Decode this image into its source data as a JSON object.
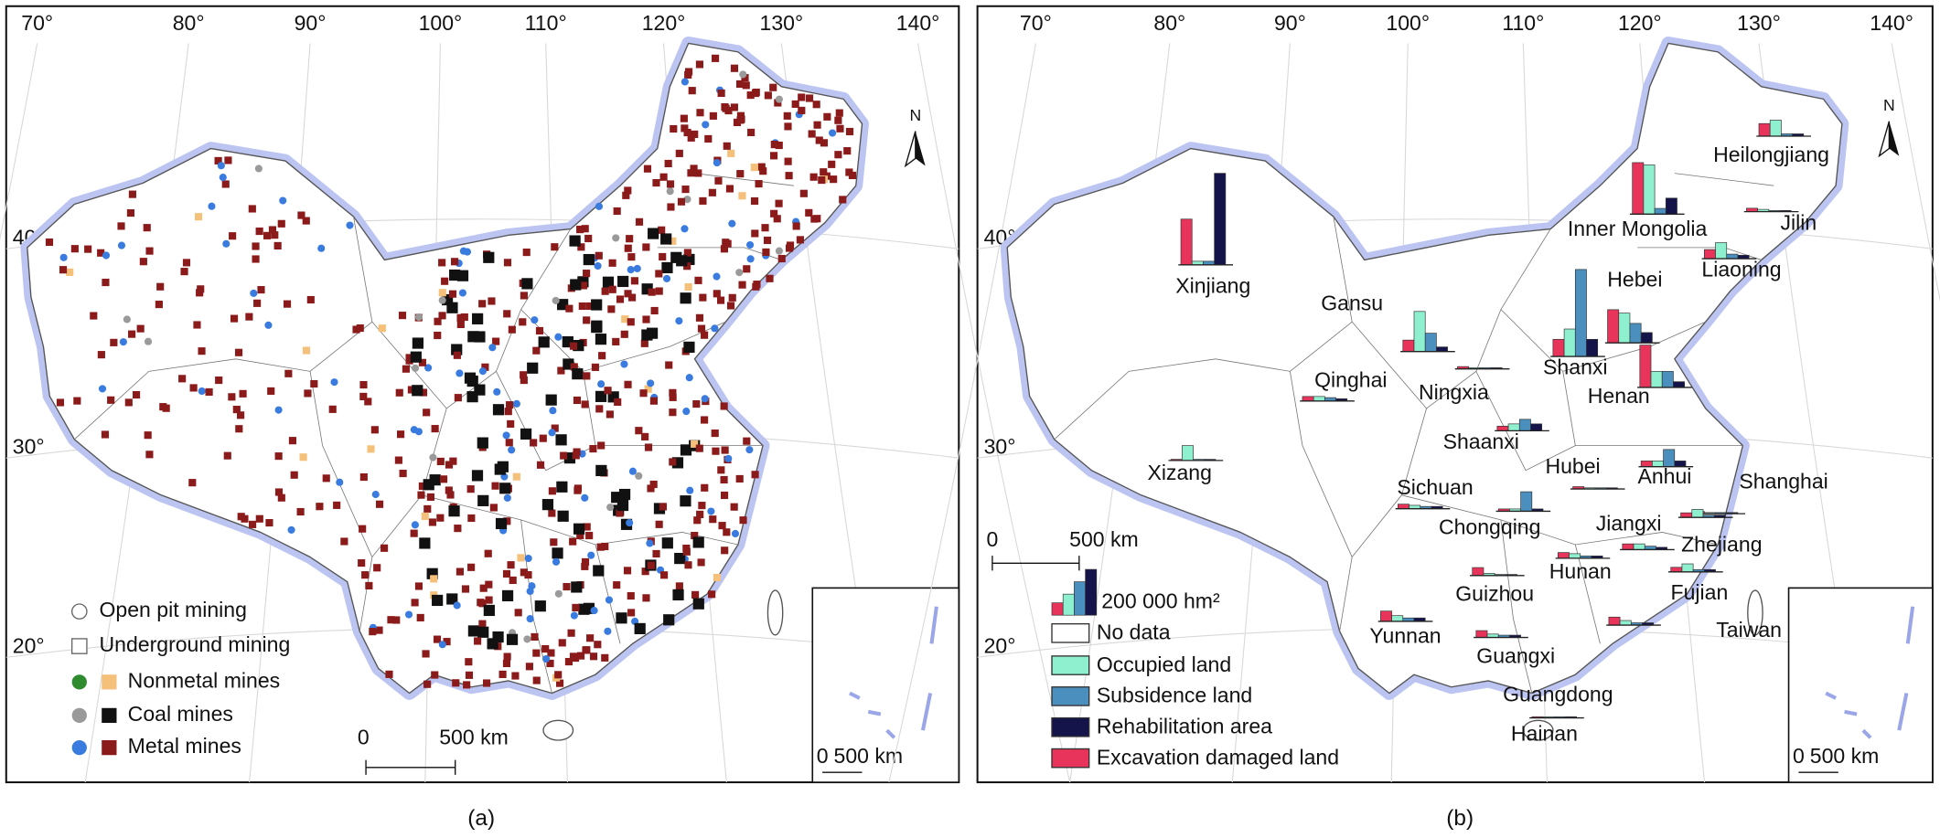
{
  "panels": [
    {
      "caption": "(a)",
      "longitudes": [
        "70°",
        "80°",
        "90°",
        "100°",
        "110°",
        "120°",
        "130°",
        "140°"
      ],
      "latitudes": [
        "40°",
        "30°",
        "20°"
      ],
      "north": "N",
      "legend": [
        "Open pit mining",
        "Underground mining",
        "Nonmetal mines",
        "Coal mines",
        "Metal mines"
      ],
      "scale_bar": {
        "start": "0",
        "end": "500 km"
      },
      "inset_scale": {
        "start": "0",
        "end": "500 km"
      }
    },
    {
      "caption": "(b)",
      "longitudes": [
        "70°",
        "80°",
        "90°",
        "100°",
        "110°",
        "120°",
        "130°",
        "140°"
      ],
      "latitudes": [
        "40°",
        "30°",
        "20°"
      ],
      "north": "N",
      "no_data_label": "No data",
      "bar_scale": {
        "value": 200000,
        "label": "200 000 hm²"
      },
      "series": [
        {
          "name": "Excavation damaged land",
          "color": "#e8345a"
        },
        {
          "name": "Occupied land",
          "color": "#8ff0d0"
        },
        {
          "name": "Subsidence land",
          "color": "#4a8fbd"
        },
        {
          "name": "Rehabilitation area",
          "color": "#14144a"
        }
      ],
      "provinces": [
        {
          "name": "Xinjiang",
          "values": [
            200000,
            16000,
            16000,
            400000
          ]
        },
        {
          "name": "Inner Mongolia",
          "values": [
            225000,
            215000,
            25000,
            70000
          ]
        },
        {
          "name": "Heilongjiang",
          "values": [
            55000,
            70000,
            10000,
            10000
          ]
        },
        {
          "name": "Jilin",
          "values": [
            15000,
            10000,
            5000,
            5000
          ]
        },
        {
          "name": "Liaoning",
          "values": [
            40000,
            70000,
            20000,
            15000
          ]
        },
        {
          "name": "Hebei",
          "values": [
            145000,
            130000,
            85000,
            45000
          ]
        },
        {
          "name": "Gansu",
          "values": [
            50000,
            175000,
            80000,
            20000
          ]
        },
        {
          "name": "Shanxi",
          "values": [
            75000,
            120000,
            380000,
            75000
          ]
        },
        {
          "name": "Henan",
          "values": [
            185000,
            70000,
            70000,
            25000
          ]
        },
        {
          "name": "Ningxia",
          "values": [
            10000,
            5000,
            5000,
            5000
          ]
        },
        {
          "name": "Qinghai",
          "values": [
            20000,
            20000,
            15000,
            10000
          ]
        },
        {
          "name": "Shaanxi",
          "values": [
            20000,
            30000,
            50000,
            30000
          ]
        },
        {
          "name": "Xizang",
          "values": [
            5000,
            65000,
            5000,
            5000
          ]
        },
        {
          "name": "Hubei",
          "values": [
            10000,
            5000,
            5000,
            5000
          ]
        },
        {
          "name": "Anhui",
          "values": [
            25000,
            25000,
            75000,
            25000
          ]
        },
        {
          "name": "Shanghai",
          "values": [
            10000,
            5000,
            5000,
            5000
          ]
        },
        {
          "name": "Sichuan",
          "values": [
            20000,
            15000,
            10000,
            10000
          ]
        },
        {
          "name": "Chongqing",
          "values": [
            10000,
            10000,
            85000,
            10000
          ]
        },
        {
          "name": "Jiangxi",
          "values": [
            25000,
            25000,
            15000,
            10000
          ]
        },
        {
          "name": "Zhejiang",
          "values": [
            20000,
            35000,
            10000,
            10000
          ]
        },
        {
          "name": "Hunan",
          "values": [
            25000,
            20000,
            10000,
            10000
          ]
        },
        {
          "name": "Fujian",
          "values": [
            20000,
            35000,
            10000,
            10000
          ]
        },
        {
          "name": "Guizhou",
          "values": [
            35000,
            10000,
            5000,
            5000
          ]
        },
        {
          "name": "Taiwan"
        },
        {
          "name": "Yunnan",
          "values": [
            45000,
            25000,
            15000,
            15000
          ]
        },
        {
          "name": "Guangxi",
          "values": [
            30000,
            15000,
            10000,
            10000
          ]
        },
        {
          "name": "Guangdong",
          "values": [
            35000,
            20000,
            10000,
            10000
          ]
        },
        {
          "name": "Hainan",
          "values": [
            5000,
            5000,
            5000,
            5000
          ]
        }
      ],
      "scale_bar": {
        "start": "0",
        "end": "500 km"
      },
      "inset_scale": {
        "start": "0",
        "end": "500 km"
      }
    }
  ]
}
